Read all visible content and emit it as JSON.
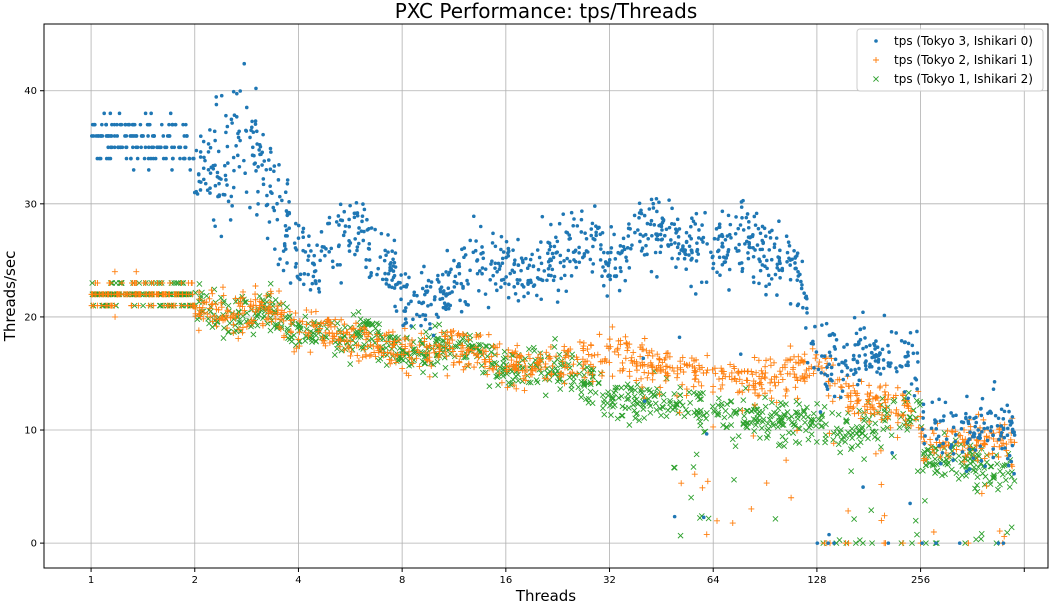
{
  "chart_data": {
    "type": "scatter",
    "title": "PXC Performance: tps/Threads",
    "xlabel": "Threads",
    "ylabel": "Threads/sec",
    "x_scale": "log2",
    "x_ticks": [
      1,
      2,
      4,
      8,
      16,
      32,
      64,
      128,
      256,
      512
    ],
    "x_tick_labels": [
      "1",
      "2",
      "4",
      "8",
      "16",
      "32",
      "64",
      "128",
      "256",
      ""
    ],
    "xlim": [
      0.73,
      600
    ],
    "y_ticks": [
      0,
      10,
      20,
      30,
      40
    ],
    "ylim": [
      -2.2,
      45.9
    ],
    "grid": true,
    "legend_position": "top-right",
    "series": [
      {
        "name": "tps (Tokyo 3, Ishikari 0)",
        "marker": "dot",
        "color": "#1f77b4",
        "trend": [
          [
            1,
            36
          ],
          [
            1.9,
            35.5
          ],
          [
            2,
            33
          ],
          [
            2.4,
            33
          ],
          [
            2.7,
            36
          ],
          [
            3.1,
            33
          ],
          [
            3.7,
            28
          ],
          [
            4,
            25
          ],
          [
            5,
            26
          ],
          [
            6,
            28
          ],
          [
            7.5,
            24
          ],
          [
            8,
            22
          ],
          [
            10,
            21
          ],
          [
            12,
            24
          ],
          [
            14,
            25
          ],
          [
            16,
            24
          ],
          [
            20,
            24
          ],
          [
            24,
            26
          ],
          [
            28,
            27
          ],
          [
            32,
            24
          ],
          [
            40,
            28
          ],
          [
            48,
            27
          ],
          [
            64,
            26
          ],
          [
            80,
            27
          ],
          [
            110,
            25
          ],
          [
            128,
            17
          ],
          [
            160,
            16
          ],
          [
            200,
            17
          ],
          [
            256,
            16
          ],
          [
            260,
            10
          ],
          [
            400,
            10
          ],
          [
            480,
            10
          ]
        ]
      },
      {
        "name": "tps (Tokyo 2, Ishikari 1)",
        "marker": "plus",
        "color": "#ff7f0e",
        "trend": [
          [
            1,
            22
          ],
          [
            1.9,
            22
          ],
          [
            2,
            21
          ],
          [
            2.6,
            20
          ],
          [
            3.2,
            21
          ],
          [
            4,
            19
          ],
          [
            6,
            18
          ],
          [
            8,
            17
          ],
          [
            12,
            17
          ],
          [
            16,
            16
          ],
          [
            24,
            16
          ],
          [
            32,
            16.5
          ],
          [
            48,
            15.5
          ],
          [
            64,
            14.5
          ],
          [
            80,
            14.5
          ],
          [
            110,
            15
          ],
          [
            128,
            16
          ],
          [
            160,
            13
          ],
          [
            200,
            12
          ],
          [
            256,
            12
          ],
          [
            260,
            9
          ],
          [
            400,
            9
          ],
          [
            480,
            9
          ]
        ]
      },
      {
        "name": "tps (Tokyo 1, Ishikari 2)",
        "marker": "x",
        "color": "#2ca02c",
        "trend": [
          [
            1,
            22
          ],
          [
            1.9,
            22
          ],
          [
            2,
            21
          ],
          [
            2.6,
            19.5
          ],
          [
            3.2,
            21
          ],
          [
            4,
            18.5
          ],
          [
            6,
            18.5
          ],
          [
            8,
            17
          ],
          [
            12,
            17.5
          ],
          [
            16,
            15.5
          ],
          [
            24,
            15.5
          ],
          [
            32,
            12.5
          ],
          [
            48,
            12.5
          ],
          [
            64,
            11.5
          ],
          [
            90,
            11
          ],
          [
            128,
            10.5
          ],
          [
            160,
            10
          ],
          [
            200,
            11
          ],
          [
            256,
            11.5
          ],
          [
            260,
            8
          ],
          [
            400,
            6.5
          ],
          [
            480,
            6
          ]
        ]
      }
    ]
  }
}
